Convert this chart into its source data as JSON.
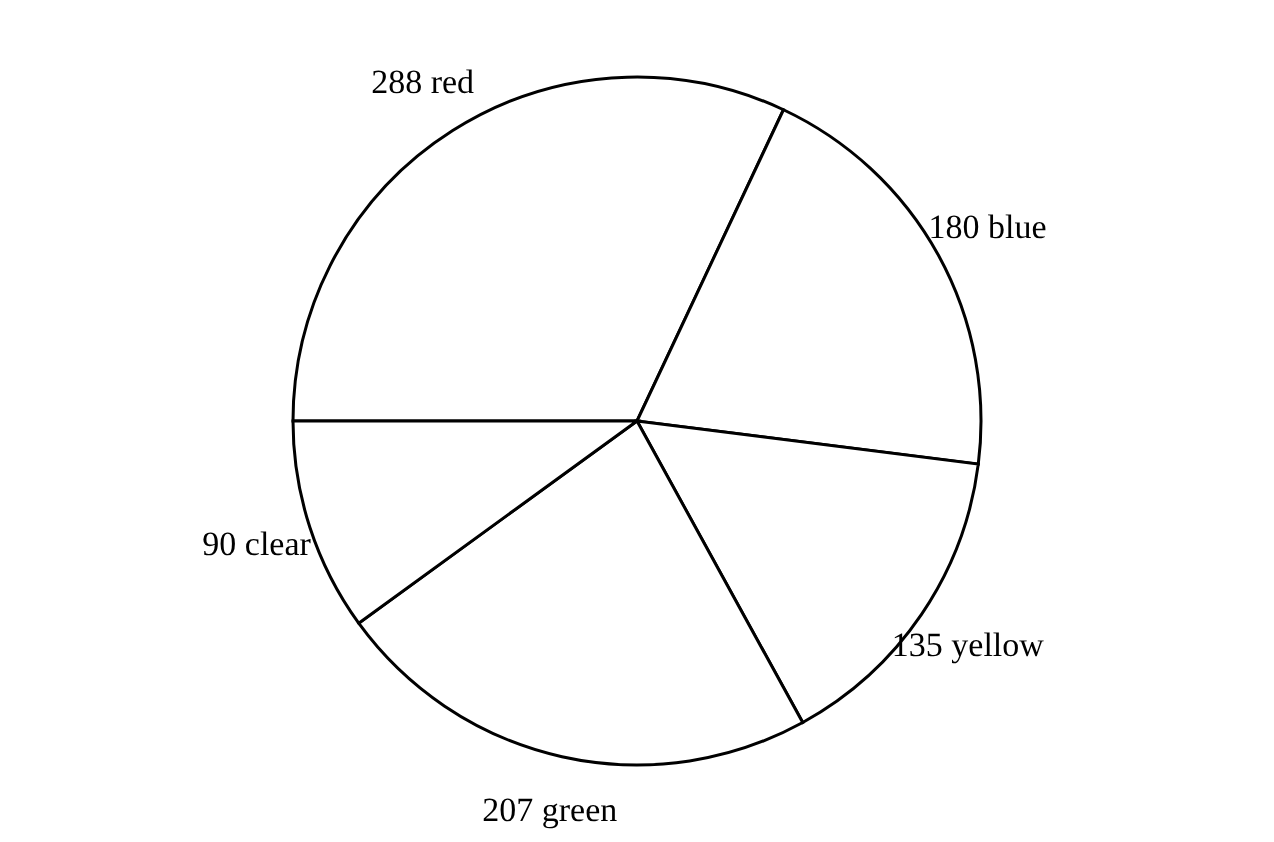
{
  "chart_data": {
    "type": "pie",
    "categories": [
      "288 red",
      "180 blue",
      "135 yellow",
      "207 green",
      "90 clear"
    ],
    "values": [
      288,
      180,
      135,
      207,
      90
    ],
    "colors": [
      "#ffffff",
      "#ffffff",
      "#ffffff",
      "#ffffff",
      "#ffffff"
    ]
  }
}
